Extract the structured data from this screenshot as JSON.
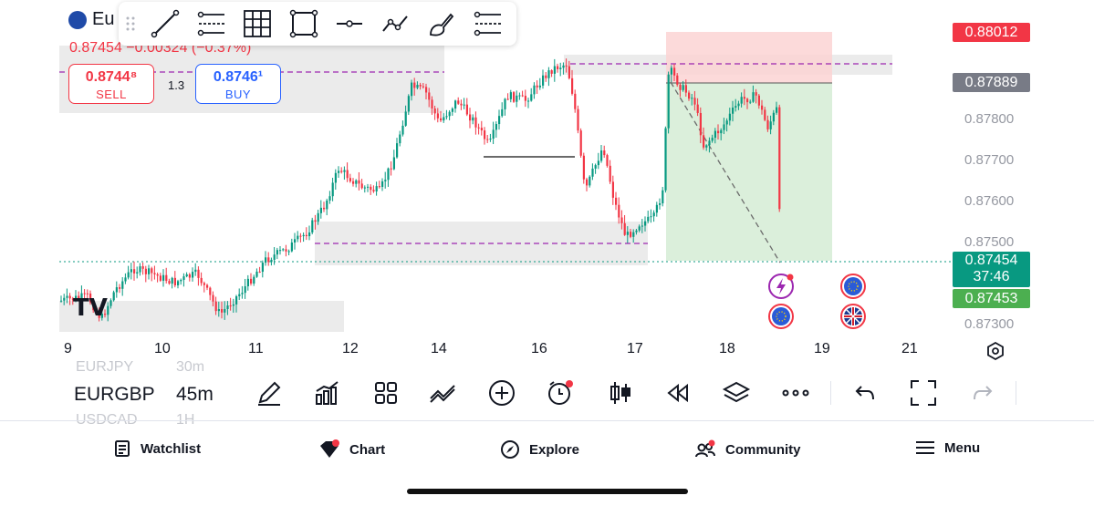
{
  "symbol": {
    "name": "Eu",
    "flag_icon": "eu-uk-flag-icon"
  },
  "quote": {
    "change": "0.87454 −0.00324 (−0.37%)"
  },
  "trade": {
    "sell_price": "0.8744⁸",
    "sell_label": "SELL",
    "buy_price": "0.8746¹",
    "buy_label": "BUY",
    "spread": "1.3"
  },
  "drawing_tools": [
    {
      "name": "trend-line-icon"
    },
    {
      "name": "fib-retracement-icon"
    },
    {
      "name": "grid-icon"
    },
    {
      "name": "rectangle-icon"
    },
    {
      "name": "horizontal-ray-icon"
    },
    {
      "name": "path-icon"
    },
    {
      "name": "brush-icon"
    },
    {
      "name": "position-icon"
    }
  ],
  "price_axis": {
    "labels": [
      "0.87800",
      "0.87700",
      "0.87600",
      "0.87500",
      "0.87300"
    ],
    "tags": {
      "take_profit": "0.88012",
      "entry": "0.87889",
      "last": "0.87454",
      "countdown": "37:46",
      "bid": "0.87453"
    },
    "colors": {
      "red": "#f23645",
      "grey": "#787b86",
      "green": "#089981",
      "lightgreen": "#4caf50"
    }
  },
  "time_axis": {
    "labels": [
      "9",
      "10",
      "11",
      "12",
      "14",
      "16",
      "17",
      "18",
      "19",
      "21"
    ]
  },
  "chart_toolbar": {
    "symbol": "EURGBP",
    "interval": "45m",
    "ghost_above_symbol": "EURJPY",
    "ghost_above_interval": "30m",
    "ghost_below_symbol": "USDCAD",
    "ghost_below_interval": "1H"
  },
  "tabs": {
    "watchlist": "Watchlist",
    "chart": "Chart",
    "explore": "Explore",
    "community": "Community",
    "menu": "Menu"
  },
  "watermark": "TV"
}
